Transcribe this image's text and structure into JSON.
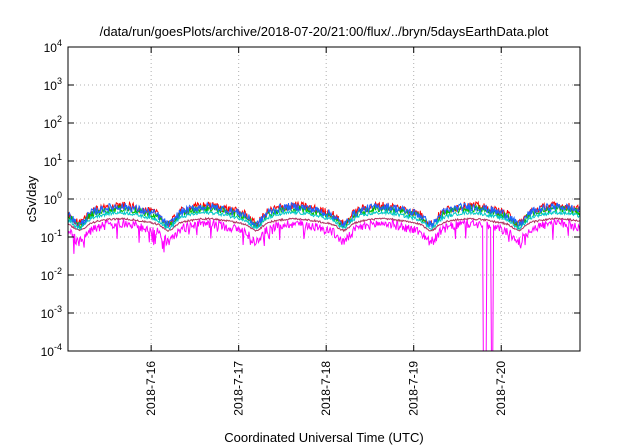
{
  "chart_data": {
    "type": "line",
    "title": "/data/run/goesPlots/archive/2018-07-20/21:00/flux/../bryn/5daysEarthData.plot",
    "xlabel": "Coordinated Universal Time (UTC)",
    "ylabel": "cSv/day",
    "yscale": "log",
    "ylim_exponents": [
      -4,
      4
    ],
    "y_tick_exponents": [
      -4,
      -3,
      -2,
      -1,
      0,
      1,
      2,
      3,
      4
    ],
    "y_tick_base": "10",
    "xlim_days": [
      15.05,
      20.9
    ],
    "x_ticks": [
      {
        "day": 16,
        "label": "2018-7-16"
      },
      {
        "day": 17,
        "label": "2018-7-17"
      },
      {
        "day": 18,
        "label": "2018-7-18"
      },
      {
        "day": 19,
        "label": "2018-7-19"
      },
      {
        "day": 20,
        "label": "2018-7-20"
      }
    ],
    "grid": true,
    "legend": "none",
    "series": [
      {
        "color": "#ff00ff",
        "base": 0.18,
        "amp": 0.28,
        "noise": 0.24,
        "lowspikes": true
      },
      {
        "color": "#b03060",
        "base": 0.26,
        "amp": 0.18,
        "noise": 0.05
      },
      {
        "color": "#ff0000",
        "base": 0.53,
        "amp": 0.28,
        "noise": 0.22
      },
      {
        "color": "#00c000",
        "base": 0.45,
        "amp": 0.26,
        "noise": 0.18
      },
      {
        "color": "#1e64ff",
        "base": 0.5,
        "amp": 0.28,
        "noise": 0.22
      },
      {
        "color": "#00c8c8",
        "base": 0.36,
        "amp": 0.24,
        "noise": 0.09
      }
    ],
    "dropouts": [
      {
        "from_day": 19.79,
        "to_day": 19.83
      },
      {
        "from_day": 19.88,
        "to_day": 19.91
      }
    ],
    "dip_days": [
      15.18,
      16.2,
      17.2,
      18.2,
      19.2,
      20.2
    ]
  }
}
